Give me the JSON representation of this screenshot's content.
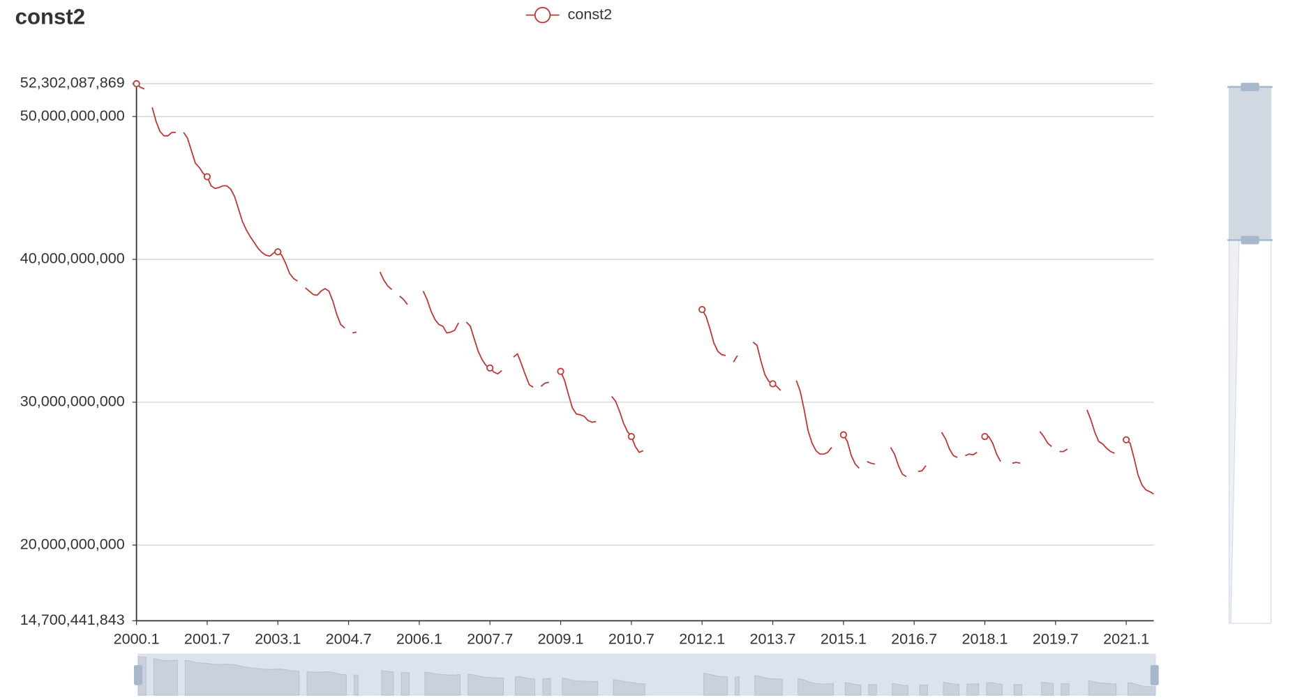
{
  "chart_data": {
    "type": "line",
    "title": "const2",
    "categories": [
      "2000.1",
      null,
      null,
      null,
      null,
      null,
      null,
      null,
      null,
      null,
      null,
      null,
      null,
      null,
      null,
      null,
      null,
      null,
      "2001.7",
      null,
      null,
      null,
      null,
      null,
      null,
      null,
      null,
      null,
      null,
      null,
      null,
      null,
      null,
      null,
      null,
      null,
      "2003.1",
      null,
      null,
      null,
      null,
      null,
      null,
      null,
      null,
      null,
      null,
      null,
      null,
      null,
      null,
      null,
      null,
      null,
      "2004.7",
      null,
      null,
      null,
      null,
      null,
      null,
      null,
      null,
      null,
      null,
      null,
      null,
      null,
      null,
      null,
      null,
      null,
      "2006.1",
      null,
      null,
      null,
      null,
      null,
      null,
      null,
      null,
      null,
      null,
      null,
      null,
      null,
      null,
      null,
      null,
      null,
      "2007.7",
      null,
      null,
      null,
      null,
      null,
      null,
      null,
      null,
      null,
      null,
      null,
      null,
      null,
      null,
      null,
      null,
      null,
      "2009.1",
      null,
      null,
      null,
      null,
      null,
      null,
      null,
      null,
      null,
      null,
      null,
      null,
      null,
      null,
      null,
      null,
      null,
      "2010.7",
      null,
      null,
      null,
      null,
      null,
      null,
      null,
      null,
      null,
      null,
      null,
      null,
      null,
      null,
      null,
      null,
      null,
      "2012.1",
      null,
      null,
      null,
      null,
      null,
      null,
      null,
      null,
      null,
      null,
      null,
      null,
      null,
      null,
      null,
      null,
      null,
      "2013.7",
      null,
      null,
      null,
      null,
      null,
      null,
      null,
      null,
      null,
      null,
      null,
      null,
      null,
      null,
      null,
      null,
      null,
      "2015.1",
      null,
      null,
      null,
      null,
      null,
      null,
      null,
      null,
      null,
      null,
      null,
      null,
      null,
      null,
      null,
      null,
      null,
      "2016.7",
      null,
      null,
      null,
      null,
      null,
      null,
      null,
      null,
      null,
      null,
      null,
      null,
      null,
      null,
      null,
      null,
      null,
      "2018.1",
      null,
      null,
      null,
      null,
      null,
      null,
      null,
      null,
      null,
      null,
      null,
      null,
      null,
      null,
      null,
      null,
      null,
      "2019.7",
      null,
      null,
      null,
      null,
      null,
      null,
      null,
      null,
      null,
      null,
      null,
      null,
      null,
      null,
      null,
      null,
      null,
      "2021.1",
      null,
      null,
      null,
      null,
      null,
      null,
      null
    ],
    "series": [
      {
        "name": "const2",
        "color": "#c23531",
        "values": [
          52302087869,
          52050000000.0,
          51930000000.0,
          null,
          50640000000.0,
          49650000000.0,
          48950000000.0,
          48650000000.0,
          48650000000.0,
          48890000000.0,
          48890000000.0,
          null,
          48890000000.0,
          48480000000.0,
          47600000000.0,
          46730000000.0,
          46430000000.0,
          46020000000.0,
          45790000000.0,
          45150000000.0,
          44970000000.0,
          45030000000.0,
          45150000000.0,
          45150000000.0,
          44910000000.0,
          44390000000.0,
          43510000000.0,
          42630000000.0,
          42050000000.0,
          41580000000.0,
          41170000000.0,
          40760000000.0,
          40470000000.0,
          40290000000.0,
          40230000000.0,
          40470000000.0,
          40530000000.0,
          40290000000.0,
          39710000000.0,
          39010000000.0,
          38660000000.0,
          38480000000.0,
          null,
          38010000000.0,
          37780000000.0,
          37540000000.0,
          37490000000.0,
          37780000000.0,
          37950000000.0,
          37780000000.0,
          37080000000.0,
          36140000000.0,
          35440000000.0,
          35200000000.0,
          null,
          34850000000.0,
          34910000000.0,
          null,
          null,
          null,
          null,
          null,
          39120000000.0,
          38540000000.0,
          38130000000.0,
          37890000000.0,
          null,
          37430000000.0,
          37190000000.0,
          36840000000.0,
          null,
          null,
          null,
          37780000000.0,
          37190000000.0,
          36370000000.0,
          35790000000.0,
          35440000000.0,
          35320000000.0,
          34850000000.0,
          34910000000.0,
          35030000000.0,
          35560000000.0,
          null,
          35610000000.0,
          35320000000.0,
          34440000000.0,
          33570000000.0,
          32980000000.0,
          32570000000.0,
          32400000000.0,
          32110000000.0,
          31990000000.0,
          32220000000.0,
          null,
          null,
          33160000000.0,
          33390000000.0,
          32690000000.0,
          31930000000.0,
          31230000000.0,
          31050000000.0,
          null,
          31110000000.0,
          31340000000.0,
          31400000000.0,
          null,
          null,
          32160000000.0,
          31520000000.0,
          30530000000.0,
          29590000000.0,
          29180000000.0,
          29120000000.0,
          29010000000.0,
          28710000000.0,
          28600000000.0,
          28650000000.0,
          null,
          null,
          null,
          30410000000.0,
          30060000000.0,
          29360000000.0,
          28540000000.0,
          27950000000.0,
          27600000000.0,
          26900000000.0,
          26490000000.0,
          26610000000.0,
          null,
          null,
          null,
          null,
          null,
          null,
          null,
          null,
          null,
          null,
          null,
          null,
          null,
          null,
          36490000000.0,
          36020000000.0,
          35150000000.0,
          34150000000.0,
          33570000000.0,
          33330000000.0,
          33270000000.0,
          null,
          32810000000.0,
          33270000000.0,
          null,
          null,
          null,
          34210000000.0,
          33980000000.0,
          32870000000.0,
          31930000000.0,
          31460000000.0,
          31290000000.0,
          31110000000.0,
          30820000000.0,
          null,
          null,
          null,
          31520000000.0,
          30760000000.0,
          29470000000.0,
          28010000000.0,
          27140000000.0,
          26610000000.0,
          26370000000.0,
          26370000000.0,
          26490000000.0,
          26840000000.0,
          null,
          null,
          27720000000.0,
          27250000000.0,
          26260000000.0,
          25670000000.0,
          25380000000.0,
          null,
          25850000000.0,
          25730000000.0,
          25670000000.0,
          null,
          null,
          null,
          26840000000.0,
          26370000000.0,
          25560000000.0,
          24970000000.0,
          24790000000.0,
          null,
          null,
          25150000000.0,
          25200000000.0,
          25560000000.0,
          null,
          null,
          null,
          27890000000.0,
          27430000000.0,
          26720000000.0,
          26260000000.0,
          26140000000.0,
          null,
          26260000000.0,
          26370000000.0,
          26320000000.0,
          26490000000.0,
          null,
          27600000000.0,
          27600000000.0,
          27130000000.0,
          26370000000.0,
          25850000000.0,
          null,
          null,
          25730000000.0,
          25790000000.0,
          25730000000.0,
          null,
          null,
          null,
          null,
          27950000000.0,
          27600000000.0,
          27130000000.0,
          26900000000.0,
          null,
          26550000000.0,
          26550000000.0,
          26720000000.0,
          null,
          null,
          null,
          null,
          29470000000.0,
          28770000000.0,
          27890000000.0,
          27250000000.0,
          27080000000.0,
          26780000000.0,
          26550000000.0,
          26430000000.0,
          null,
          null,
          27370000000.0,
          27130000000.0,
          26080000000.0,
          24910000000.0,
          24210000000.0,
          23860000000.0,
          23740000000.0,
          23570000000.0
        ]
      }
    ],
    "ylim": [
      14700441843,
      52302087869
    ],
    "yticks": [
      {
        "value": 14700441843,
        "label": "14,700,441,843"
      },
      {
        "value": 20000000000,
        "label": "20,000,000,000"
      },
      {
        "value": 30000000000,
        "label": "30,000,000,000"
      },
      {
        "value": 40000000000,
        "label": "40,000,000,000"
      },
      {
        "value": 50000000000,
        "label": "50,000,000,000"
      },
      {
        "value": 52302087869,
        "label": "52,302,087,869"
      }
    ],
    "grid": true,
    "legend": "top"
  }
}
